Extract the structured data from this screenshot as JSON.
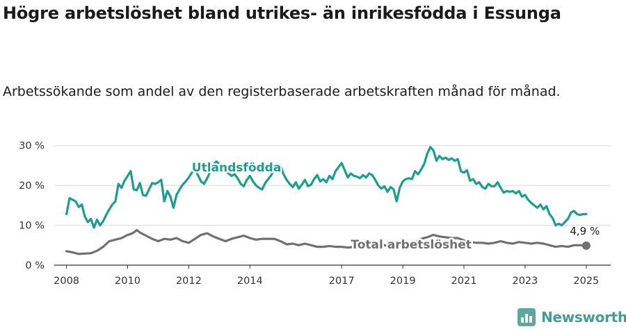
{
  "title": "Högre arbetslöshet bland utrikes- än inrikesfödda i Essunga",
  "subtitle": "Arbetssökande som andel av den registerbaserade arbetskraften månad för månad.",
  "brand": {
    "name": "Newsworthy",
    "icon": "newsworthy-logo-icon",
    "color": "#3f9e98"
  },
  "chart_data": {
    "type": "line",
    "xlabel": "",
    "ylabel": "",
    "x_range": [
      2007.6,
      2025.8
    ],
    "ylim": [
      0,
      31
    ],
    "grid": "horizontal",
    "legend": "inline labels",
    "y_ticks": [
      {
        "value": 0,
        "label": "0 %"
      },
      {
        "value": 10,
        "label": "10 %"
      },
      {
        "value": 20,
        "label": "20 %"
      },
      {
        "value": 30,
        "label": "30 %"
      }
    ],
    "x_ticks": [
      {
        "value": 2008,
        "label": "2008"
      },
      {
        "value": 2010,
        "label": "2010"
      },
      {
        "value": 2012,
        "label": "2012"
      },
      {
        "value": 2014,
        "label": "2014"
      },
      {
        "value": 2017,
        "label": "2017"
      },
      {
        "value": 2019,
        "label": "2019"
      },
      {
        "value": 2021,
        "label": "2021"
      },
      {
        "value": 2023,
        "label": "2023"
      },
      {
        "value": 2025,
        "label": "2025"
      }
    ],
    "series": [
      {
        "name": "Utlandsfödda",
        "color": "#1a9e8f",
        "label_at": [
          2012.1,
          23.5
        ],
        "points": [
          [
            2008.0,
            12.8
          ],
          [
            2008.1,
            16.8
          ],
          [
            2008.3,
            16.0
          ],
          [
            2008.4,
            14.6
          ],
          [
            2008.5,
            15.2
          ],
          [
            2008.6,
            12.2
          ],
          [
            2008.7,
            10.8
          ],
          [
            2008.8,
            11.6
          ],
          [
            2008.9,
            9.4
          ],
          [
            2009.0,
            11.4
          ],
          [
            2009.1,
            10.0
          ],
          [
            2009.2,
            11.0
          ],
          [
            2009.3,
            12.6
          ],
          [
            2009.4,
            14.0
          ],
          [
            2009.5,
            15.2
          ],
          [
            2009.6,
            16.0
          ],
          [
            2009.7,
            20.4
          ],
          [
            2009.8,
            19.4
          ],
          [
            2009.9,
            21.2
          ],
          [
            2010.0,
            22.4
          ],
          [
            2010.1,
            23.6
          ],
          [
            2010.2,
            19.0
          ],
          [
            2010.3,
            18.8
          ],
          [
            2010.4,
            20.6
          ],
          [
            2010.5,
            17.6
          ],
          [
            2010.6,
            17.4
          ],
          [
            2010.7,
            19.0
          ],
          [
            2010.8,
            20.6
          ],
          [
            2010.9,
            20.4
          ],
          [
            2011.0,
            20.8
          ],
          [
            2011.1,
            21.4
          ],
          [
            2011.2,
            16.0
          ],
          [
            2011.3,
            18.6
          ],
          [
            2011.4,
            17.2
          ],
          [
            2011.5,
            14.4
          ],
          [
            2011.6,
            17.6
          ],
          [
            2011.7,
            19.0
          ],
          [
            2011.8,
            20.2
          ],
          [
            2011.9,
            21.0
          ],
          [
            2012.0,
            22.0
          ],
          [
            2012.1,
            23.2
          ],
          [
            2012.2,
            24.0
          ],
          [
            2012.3,
            22.6
          ],
          [
            2012.4,
            21.0
          ],
          [
            2012.5,
            20.4
          ],
          [
            2012.6,
            21.8
          ],
          [
            2012.7,
            23.4
          ],
          [
            2012.8,
            25.2
          ],
          [
            2012.9,
            26.0
          ],
          [
            2013.0,
            25.4
          ],
          [
            2013.1,
            24.6
          ],
          [
            2013.2,
            23.6
          ],
          [
            2013.3,
            23.0
          ],
          [
            2013.4,
            22.4
          ],
          [
            2013.5,
            22.8
          ],
          [
            2013.6,
            21.8
          ],
          [
            2013.7,
            20.4
          ],
          [
            2013.8,
            19.8
          ],
          [
            2013.9,
            21.4
          ],
          [
            2014.0,
            22.4
          ],
          [
            2014.1,
            21.0
          ],
          [
            2014.2,
            20.0
          ],
          [
            2014.3,
            19.4
          ],
          [
            2014.4,
            19.0
          ],
          [
            2014.5,
            20.6
          ],
          [
            2014.6,
            21.6
          ],
          [
            2014.7,
            22.6
          ],
          [
            2014.8,
            24.2
          ],
          [
            2014.9,
            25.4
          ],
          [
            2015.0,
            25.0
          ],
          [
            2015.1,
            22.8
          ],
          [
            2015.2,
            21.4
          ],
          [
            2015.3,
            20.4
          ],
          [
            2015.4,
            19.6
          ],
          [
            2015.5,
            20.8
          ],
          [
            2015.6,
            19.2
          ],
          [
            2015.7,
            20.2
          ],
          [
            2015.8,
            21.4
          ],
          [
            2015.9,
            19.8
          ],
          [
            2016.0,
            20.2
          ],
          [
            2016.1,
            21.6
          ],
          [
            2016.2,
            22.6
          ],
          [
            2016.3,
            21.0
          ],
          [
            2016.4,
            21.6
          ],
          [
            2016.5,
            20.8
          ],
          [
            2016.6,
            22.4
          ],
          [
            2016.7,
            21.6
          ],
          [
            2016.8,
            23.6
          ],
          [
            2016.9,
            24.6
          ],
          [
            2017.0,
            25.6
          ],
          [
            2017.1,
            23.8
          ],
          [
            2017.2,
            22.0
          ],
          [
            2017.3,
            23.0
          ],
          [
            2017.4,
            22.4
          ],
          [
            2017.5,
            22.2
          ],
          [
            2017.6,
            21.8
          ],
          [
            2017.7,
            22.6
          ],
          [
            2017.8,
            22.0
          ],
          [
            2017.9,
            23.0
          ],
          [
            2018.0,
            22.6
          ],
          [
            2018.1,
            21.4
          ],
          [
            2018.2,
            20.0
          ],
          [
            2018.3,
            19.2
          ],
          [
            2018.4,
            19.8
          ],
          [
            2018.5,
            18.4
          ],
          [
            2018.6,
            19.6
          ],
          [
            2018.7,
            19.0
          ],
          [
            2018.8,
            16.0
          ],
          [
            2018.9,
            19.4
          ],
          [
            2019.0,
            21.0
          ],
          [
            2019.1,
            21.6
          ],
          [
            2019.2,
            21.8
          ],
          [
            2019.3,
            21.6
          ],
          [
            2019.4,
            23.6
          ],
          [
            2019.5,
            22.8
          ],
          [
            2019.6,
            24.0
          ],
          [
            2019.7,
            25.4
          ],
          [
            2019.8,
            28.0
          ],
          [
            2019.9,
            29.6
          ],
          [
            2020.0,
            28.8
          ],
          [
            2020.1,
            26.2
          ],
          [
            2020.2,
            27.4
          ],
          [
            2020.3,
            26.6
          ],
          [
            2020.4,
            27.0
          ],
          [
            2020.5,
            26.4
          ],
          [
            2020.6,
            26.8
          ],
          [
            2020.7,
            26.2
          ],
          [
            2020.8,
            26.6
          ],
          [
            2020.9,
            23.6
          ],
          [
            2021.0,
            23.2
          ],
          [
            2021.1,
            23.8
          ],
          [
            2021.2,
            21.2
          ],
          [
            2021.3,
            21.6
          ],
          [
            2021.4,
            20.4
          ],
          [
            2021.5,
            20.8
          ],
          [
            2021.6,
            19.6
          ],
          [
            2021.7,
            19.2
          ],
          [
            2021.8,
            20.4
          ],
          [
            2021.9,
            19.8
          ],
          [
            2022.0,
            19.8
          ],
          [
            2022.1,
            20.8
          ],
          [
            2022.2,
            19.4
          ],
          [
            2022.3,
            18.2
          ],
          [
            2022.4,
            18.6
          ],
          [
            2022.5,
            18.4
          ],
          [
            2022.6,
            18.6
          ],
          [
            2022.7,
            18.0
          ],
          [
            2022.8,
            18.6
          ],
          [
            2022.9,
            17.2
          ],
          [
            2023.0,
            17.6
          ],
          [
            2023.1,
            16.4
          ],
          [
            2023.2,
            15.6
          ],
          [
            2023.3,
            15.0
          ],
          [
            2023.4,
            14.4
          ],
          [
            2023.5,
            15.2
          ],
          [
            2023.6,
            14.0
          ],
          [
            2023.7,
            14.8
          ],
          [
            2023.8,
            12.8
          ],
          [
            2023.9,
            11.8
          ],
          [
            2024.0,
            10.0
          ],
          [
            2024.1,
            10.4
          ],
          [
            2024.2,
            10.0
          ],
          [
            2024.3,
            10.8
          ],
          [
            2024.4,
            11.6
          ],
          [
            2024.5,
            13.2
          ],
          [
            2024.6,
            13.6
          ],
          [
            2024.7,
            12.8
          ],
          [
            2024.8,
            12.6
          ],
          [
            2024.9,
            12.8
          ],
          [
            2025.0,
            12.8
          ]
        ]
      },
      {
        "name": "Total arbetslöshet",
        "color": "#707070",
        "label_at": [
          2017.3,
          4.2
        ],
        "end_label": "4,9 %",
        "points": [
          [
            2008.0,
            3.5
          ],
          [
            2008.2,
            3.2
          ],
          [
            2008.4,
            2.8
          ],
          [
            2008.6,
            2.9
          ],
          [
            2008.8,
            3.0
          ],
          [
            2009.0,
            3.6
          ],
          [
            2009.2,
            4.6
          ],
          [
            2009.4,
            6.0
          ],
          [
            2009.6,
            6.4
          ],
          [
            2009.8,
            6.8
          ],
          [
            2010.0,
            7.6
          ],
          [
            2010.1,
            7.8
          ],
          [
            2010.2,
            8.2
          ],
          [
            2010.3,
            8.8
          ],
          [
            2010.4,
            8.2
          ],
          [
            2010.6,
            7.4
          ],
          [
            2010.8,
            6.6
          ],
          [
            2011.0,
            6.0
          ],
          [
            2011.2,
            6.6
          ],
          [
            2011.4,
            6.4
          ],
          [
            2011.6,
            6.8
          ],
          [
            2011.8,
            6.0
          ],
          [
            2012.0,
            5.6
          ],
          [
            2012.2,
            6.6
          ],
          [
            2012.4,
            7.6
          ],
          [
            2012.6,
            8.0
          ],
          [
            2012.8,
            7.2
          ],
          [
            2013.0,
            6.6
          ],
          [
            2013.2,
            6.0
          ],
          [
            2013.4,
            6.6
          ],
          [
            2013.6,
            7.0
          ],
          [
            2013.8,
            7.4
          ],
          [
            2014.0,
            6.8
          ],
          [
            2014.2,
            6.4
          ],
          [
            2014.4,
            6.6
          ],
          [
            2014.6,
            6.6
          ],
          [
            2014.8,
            6.6
          ],
          [
            2015.0,
            6.0
          ],
          [
            2015.2,
            5.2
          ],
          [
            2015.4,
            5.4
          ],
          [
            2015.6,
            5.0
          ],
          [
            2015.8,
            5.4
          ],
          [
            2016.0,
            5.0
          ],
          [
            2016.2,
            4.6
          ],
          [
            2016.4,
            4.6
          ],
          [
            2016.6,
            4.8
          ],
          [
            2016.8,
            4.6
          ],
          [
            2017.0,
            4.6
          ],
          [
            2017.2,
            4.4
          ],
          [
            2017.4,
            4.6
          ],
          [
            2017.6,
            4.8
          ],
          [
            2017.8,
            4.6
          ],
          [
            2018.0,
            5.0
          ],
          [
            2018.2,
            4.8
          ],
          [
            2018.4,
            5.0
          ],
          [
            2018.6,
            4.6
          ],
          [
            2018.8,
            5.0
          ],
          [
            2019.0,
            5.2
          ],
          [
            2019.2,
            5.4
          ],
          [
            2019.4,
            5.8
          ],
          [
            2019.6,
            6.6
          ],
          [
            2019.8,
            7.0
          ],
          [
            2020.0,
            7.6
          ],
          [
            2020.2,
            7.2
          ],
          [
            2020.4,
            7.0
          ],
          [
            2020.6,
            6.8
          ],
          [
            2020.8,
            6.8
          ],
          [
            2021.0,
            6.2
          ],
          [
            2021.2,
            5.8
          ],
          [
            2021.4,
            5.6
          ],
          [
            2021.6,
            5.6
          ],
          [
            2021.8,
            5.4
          ],
          [
            2022.0,
            5.6
          ],
          [
            2022.2,
            6.0
          ],
          [
            2022.4,
            5.6
          ],
          [
            2022.6,
            5.4
          ],
          [
            2022.8,
            5.8
          ],
          [
            2023.0,
            5.6
          ],
          [
            2023.2,
            5.4
          ],
          [
            2023.4,
            5.6
          ],
          [
            2023.6,
            5.4
          ],
          [
            2023.8,
            5.0
          ],
          [
            2024.0,
            4.6
          ],
          [
            2024.2,
            4.8
          ],
          [
            2024.4,
            4.6
          ],
          [
            2024.6,
            5.0
          ],
          [
            2024.8,
            5.0
          ],
          [
            2025.0,
            4.9
          ]
        ]
      }
    ]
  }
}
